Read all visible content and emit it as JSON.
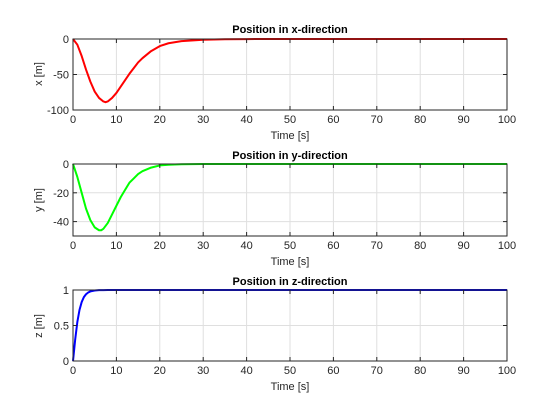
{
  "chart_data": [
    {
      "type": "line",
      "title": "Position in x-direction",
      "xlabel": "Time [s]",
      "ylabel": "x [m]",
      "xlim": [
        0,
        100
      ],
      "ylim": [
        -100,
        0
      ],
      "xticks": [
        0,
        10,
        20,
        30,
        40,
        50,
        60,
        70,
        80,
        90,
        100
      ],
      "yticks": [
        -100,
        -50,
        0
      ],
      "grid": true,
      "series": [
        {
          "color": "#ff0000",
          "x": [
            0,
            1,
            2,
            3,
            4,
            5,
            6,
            7,
            7.5,
            8,
            9,
            10,
            11,
            12,
            13,
            14,
            15,
            16,
            18,
            20,
            22,
            25,
            30,
            35,
            40,
            50,
            60,
            70,
            80,
            90,
            100
          ],
          "y": [
            0,
            -8,
            -24,
            -43,
            -60,
            -74,
            -83,
            -88,
            -89,
            -88,
            -83,
            -76,
            -67,
            -58,
            -49,
            -41,
            -33,
            -27,
            -17,
            -10,
            -6,
            -3,
            -1,
            -0.3,
            -0.1,
            0,
            0,
            0,
            0,
            0,
            0
          ]
        }
      ]
    },
    {
      "type": "line",
      "title": "Position in y-direction",
      "xlabel": "Time [s]",
      "ylabel": "y [m]",
      "xlim": [
        0,
        100
      ],
      "ylim": [
        -50,
        0
      ],
      "xticks": [
        0,
        10,
        20,
        30,
        40,
        50,
        60,
        70,
        80,
        90,
        100
      ],
      "yticks": [
        -40,
        -20,
        0
      ],
      "grid": true,
      "series": [
        {
          "color": "#00ff00",
          "x": [
            0,
            1,
            2,
            3,
            4,
            5,
            6,
            6.5,
            7,
            8,
            9,
            10,
            11,
            12,
            13,
            14,
            15,
            16,
            18,
            20,
            22,
            25,
            30,
            40,
            50,
            60,
            70,
            80,
            90,
            100
          ],
          "y": [
            0,
            -9,
            -20,
            -31,
            -39,
            -44,
            -46,
            -46,
            -45,
            -41,
            -35,
            -29,
            -23,
            -18,
            -13,
            -10,
            -7,
            -5,
            -2.5,
            -1,
            -0.5,
            -0.2,
            0,
            0,
            0,
            0,
            0,
            0,
            0,
            0
          ]
        }
      ]
    },
    {
      "type": "line",
      "title": "Position in z-direction",
      "xlabel": "Time [s]",
      "ylabel": "z [m]",
      "xlim": [
        0,
        100
      ],
      "ylim": [
        0,
        1
      ],
      "xticks": [
        0,
        10,
        20,
        30,
        40,
        50,
        60,
        70,
        80,
        90,
        100
      ],
      "yticks": [
        0,
        0.5,
        1
      ],
      "grid": true,
      "series": [
        {
          "color": "#0000ff",
          "x": [
            0,
            0.5,
            1,
            1.5,
            2,
            2.5,
            3,
            3.5,
            4,
            5,
            6,
            7,
            8,
            10,
            15,
            20,
            30,
            40,
            50,
            60,
            70,
            80,
            90,
            100
          ],
          "y": [
            0,
            0.3,
            0.55,
            0.72,
            0.83,
            0.9,
            0.94,
            0.965,
            0.98,
            0.993,
            0.998,
            0.999,
            1,
            1,
            1,
            1,
            1,
            1,
            1,
            1,
            1,
            1,
            1,
            1
          ]
        }
      ]
    }
  ]
}
